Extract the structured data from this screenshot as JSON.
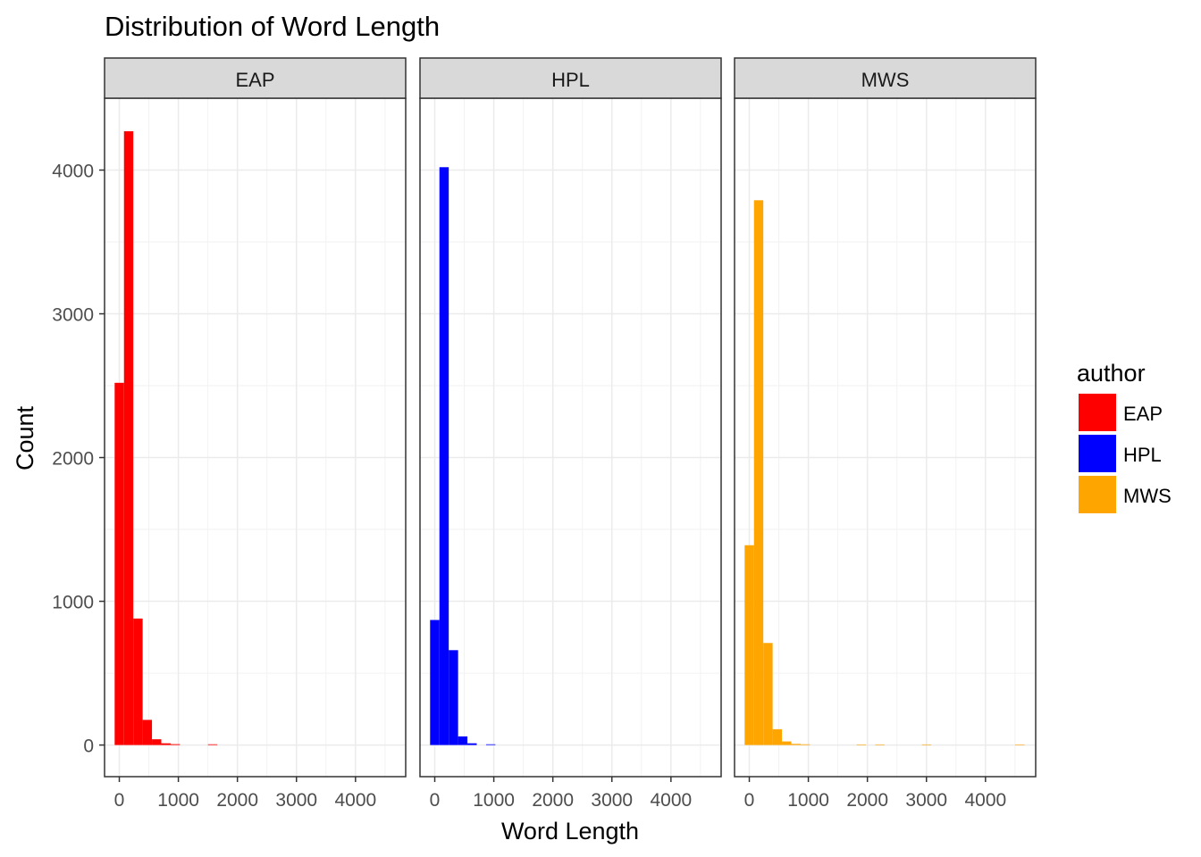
{
  "chart_data": {
    "type": "bar",
    "title": "Distribution of  Word Length",
    "xlabel": "Word Length",
    "ylabel": "Count",
    "xlim": [
      -250,
      4850
    ],
    "ylim": [
      -220,
      4500
    ],
    "x_ticks": [
      0,
      1000,
      2000,
      3000,
      4000
    ],
    "y_ticks": [
      0,
      1000,
      2000,
      3000,
      4000
    ],
    "grid": true,
    "bin_width": 158,
    "legend": {
      "title": "author",
      "placement": "right",
      "items": [
        {
          "label": "EAP",
          "color": "#FF0000"
        },
        {
          "label": "HPL",
          "color": "#0000FF"
        },
        {
          "label": "MWS",
          "color": "#FFA500"
        }
      ]
    },
    "panels": [
      {
        "name": "EAP",
        "color": "#FF0000",
        "bins": [
          {
            "x": 0,
            "count": 2520
          },
          {
            "x": 158,
            "count": 4270
          },
          {
            "x": 316,
            "count": 880
          },
          {
            "x": 474,
            "count": 175
          },
          {
            "x": 632,
            "count": 40
          },
          {
            "x": 790,
            "count": 12
          },
          {
            "x": 948,
            "count": 6
          },
          {
            "x": 1580,
            "count": 5
          }
        ]
      },
      {
        "name": "HPL",
        "color": "#0000FF",
        "bins": [
          {
            "x": 0,
            "count": 870
          },
          {
            "x": 158,
            "count": 4020
          },
          {
            "x": 316,
            "count": 660
          },
          {
            "x": 474,
            "count": 60
          },
          {
            "x": 632,
            "count": 12
          },
          {
            "x": 948,
            "count": 5
          }
        ]
      },
      {
        "name": "MWS",
        "color": "#FFA500",
        "bins": [
          {
            "x": 0,
            "count": 1390
          },
          {
            "x": 158,
            "count": 3790
          },
          {
            "x": 316,
            "count": 710
          },
          {
            "x": 474,
            "count": 110
          },
          {
            "x": 632,
            "count": 25
          },
          {
            "x": 790,
            "count": 8
          },
          {
            "x": 948,
            "count": 5
          },
          {
            "x": 1896,
            "count": 4
          },
          {
            "x": 2212,
            "count": 4
          },
          {
            "x": 3002,
            "count": 4
          },
          {
            "x": 4582,
            "count": 4
          }
        ]
      }
    ]
  }
}
